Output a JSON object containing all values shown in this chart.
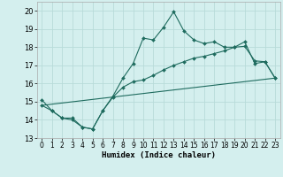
{
  "xlabel": "Humidex (Indice chaleur)",
  "xlim": [
    -0.5,
    23.5
  ],
  "ylim": [
    13,
    20.5
  ],
  "yticks": [
    13,
    14,
    15,
    16,
    17,
    18,
    19,
    20
  ],
  "xticks": [
    0,
    1,
    2,
    3,
    4,
    5,
    6,
    7,
    8,
    9,
    10,
    11,
    12,
    13,
    14,
    15,
    16,
    17,
    18,
    19,
    20,
    21,
    22,
    23
  ],
  "bg_color": "#d4efee",
  "grid_color": "#b8dbd9",
  "line_color": "#1e6b5e",
  "line1_y": [
    15.1,
    14.5,
    14.1,
    14.1,
    13.6,
    13.5,
    14.5,
    15.3,
    16.3,
    17.1,
    18.5,
    18.4,
    19.1,
    19.95,
    18.9,
    18.4,
    18.2,
    18.3,
    18.0,
    18.0,
    18.3,
    17.1,
    17.2,
    16.3
  ],
  "line2_y": [
    14.8,
    14.5,
    14.1,
    14.0,
    13.6,
    13.5,
    14.5,
    15.25,
    15.8,
    16.1,
    16.2,
    16.45,
    16.75,
    17.0,
    17.2,
    17.4,
    17.5,
    17.65,
    17.8,
    18.0,
    18.05,
    17.25,
    17.2,
    16.3
  ],
  "line3_y": [
    14.8,
    16.3
  ]
}
